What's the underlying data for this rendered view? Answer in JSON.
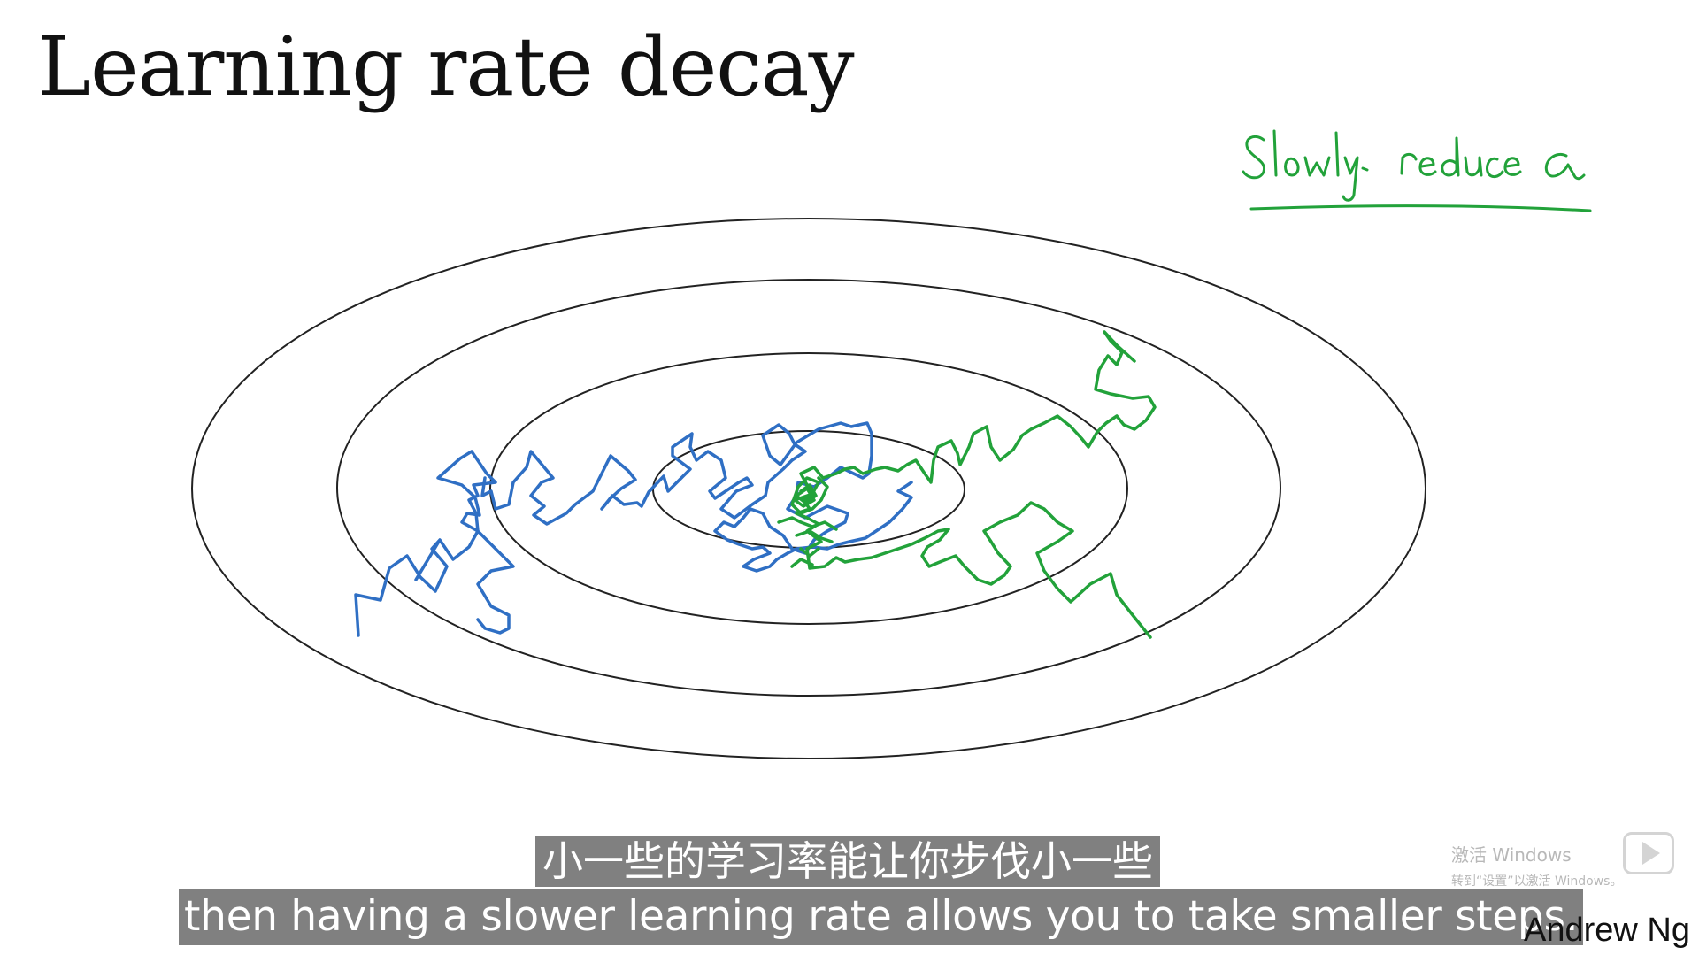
{
  "slide": {
    "title": "Learning rate decay",
    "handwritten_note": "Slowly reduce α",
    "author": "Andrew Ng"
  },
  "subtitles": {
    "chinese": "小一些的学习率能让你步伐小一些",
    "english": "then having a slower learning rate allows you to take smaller steps."
  },
  "watermark": {
    "line1": "激活 Windows",
    "line2": "转到“设置”以激活 Windows。"
  },
  "colors": {
    "contour": "#222222",
    "path_blue": "#2f6fc4",
    "path_green": "#22a23a",
    "note_green": "#22a23a",
    "subtitle_bg": "#4d4d4d"
  },
  "icons": {
    "play": "play-icon"
  }
}
